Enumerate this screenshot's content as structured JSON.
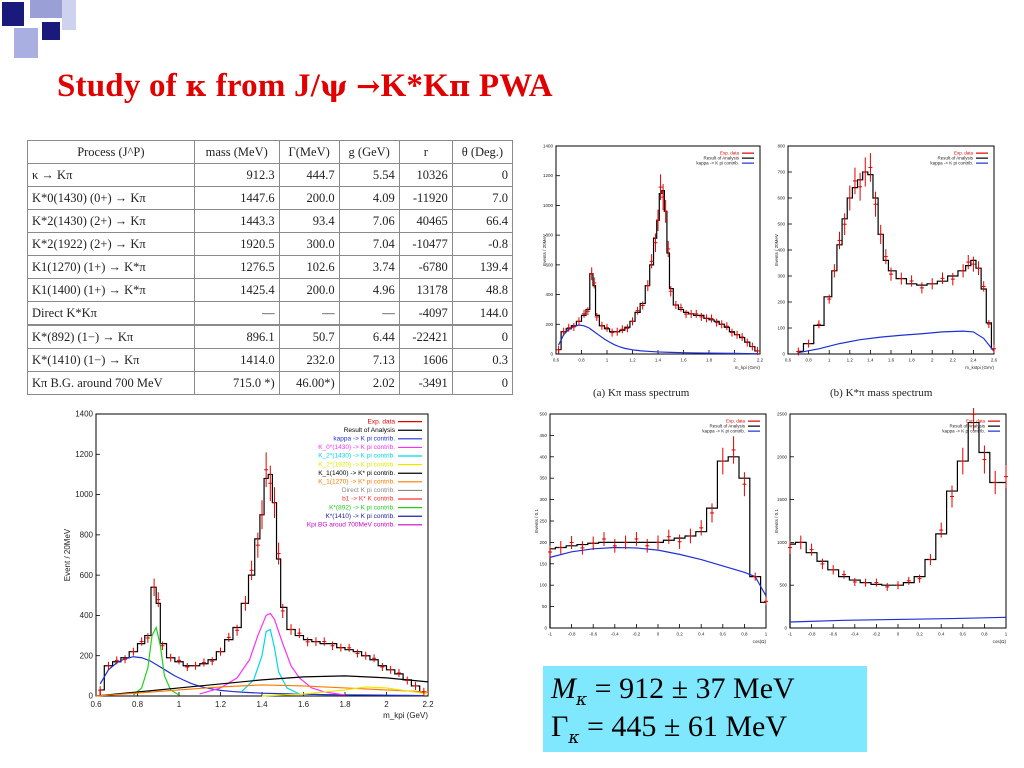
{
  "slide": {
    "title_parts": {
      "a": "Study of ",
      "kappa": "κ",
      "b": " from J/",
      "psi": "ψ",
      "c": " ",
      "arrow": "→",
      "d": "K*K",
      "pi": "π",
      "e": " PWA"
    },
    "accent_color": "#e00000"
  },
  "table": {
    "headers": [
      "Process (J^P)",
      "mass (MeV)",
      "Γ(MeV)",
      "g (GeV)",
      "r",
      "θ (Deg.)"
    ],
    "rows": [
      [
        "κ → Kπ",
        "912.3",
        "444.7",
        "5.54",
        "10326",
        "0"
      ],
      [
        "K*0(1430) (0+) → Kπ",
        "1447.6",
        "200.0",
        "4.09",
        "-11920",
        "7.0"
      ],
      [
        "K*2(1430) (2+) → Kπ",
        "1443.3",
        "93.4",
        "7.06",
        "40465",
        "66.4"
      ],
      [
        "K*2(1922) (2+) → Kπ",
        "1920.5",
        "300.0",
        "7.04",
        "-10477",
        "-0.8"
      ],
      [
        "K1(1270) (1+) → K*π",
        "1276.5",
        "102.6",
        "3.74",
        "-6780",
        "139.4"
      ],
      [
        "K1(1400) (1+) → K*π",
        "1425.4",
        "200.0",
        "4.96",
        "13178",
        "48.8"
      ],
      [
        "Direct K*Kπ",
        "—",
        "—",
        "—",
        "-4097",
        "144.0"
      ],
      [
        "K*(892) (1−) → Kπ",
        "896.1",
        "50.7",
        "6.44",
        "-22421",
        "0"
      ],
      [
        "K*(1410) (1−) → Kπ",
        "1414.0",
        "232.0",
        "7.13",
        "1606",
        "0.3"
      ],
      [
        "Kπ B.G. around 700 MeV",
        "715.0 *)",
        "46.00*)",
        "2.02",
        "-3491",
        "0"
      ]
    ]
  },
  "big_plot": {
    "xlabel": "m_kpi (GeV)",
    "ylabel": "Event / 20MeV",
    "xticks": [
      "0.6",
      "0.8",
      "1",
      "1.2",
      "1.4",
      "1.6",
      "1.8",
      "2",
      "2.2"
    ],
    "yticks": [
      "0",
      "200",
      "400",
      "600",
      "800",
      "1000",
      "1200",
      "1400"
    ],
    "legend": [
      {
        "label": "Exp. data",
        "color": "#e00000"
      },
      {
        "label": "Result of Analysis",
        "color": "#000000"
      },
      {
        "label": "kappa -> K pi contrib.",
        "color": "#1f2fd6"
      },
      {
        "label": "K_0*(1430) -> K pi contrib.",
        "color": "#ff30ff"
      },
      {
        "label": "K_2*(1430) -> K pi contrib.",
        "color": "#00d8e8"
      },
      {
        "label": "K_2*(1920) -> K pi contrib.",
        "color": "#e8e800"
      },
      {
        "label": "K_1(1400) -> K* pi contrib.",
        "color": "#000000"
      },
      {
        "label": "K_1(1270) -> K* pi contrib.",
        "color": "#ff7a00"
      },
      {
        "label": "Direct K pi contrib.",
        "color": "#888888"
      },
      {
        "label": "b1 -> K* K contrib.",
        "color": "#ff3030"
      },
      {
        "label": "K*(892) -> K pi contrib.",
        "color": "#20d020"
      },
      {
        "label": "K*(1410) -> K pi contrib.",
        "color": "#2020a0"
      },
      {
        "label": "Kpi BG aroud 700MeV contrib.",
        "color": "#cc00cc"
      }
    ]
  },
  "panel_a": {
    "caption": "(a) Kπ mass spectrum",
    "xlabel": "m_kpi (GeV)",
    "ylabel": "Events / 20MeV",
    "xticks": [
      "0.6",
      "0.8",
      "1",
      "1.2",
      "1.4",
      "1.6",
      "1.8",
      "2",
      "2.2"
    ],
    "yticks": [
      "0",
      "200",
      "400",
      "600",
      "800",
      "1000",
      "1200",
      "1400"
    ],
    "legend": [
      "Exp. data",
      "Result of Analysis",
      "kappa -> K pi contrib."
    ]
  },
  "panel_b": {
    "caption": "(b) K*π mass spectrum",
    "xlabel": "m_kstpi (GeV)",
    "ylabel": "Events / 20MeV",
    "xticks": [
      "0.6",
      "0.8",
      "1",
      "1.2",
      "1.4",
      "1.6",
      "1.8",
      "2",
      "2.2",
      "2.4",
      "2.6"
    ],
    "yticks": [
      "0",
      "100",
      "200",
      "300",
      "400",
      "500",
      "600",
      "700",
      "800"
    ],
    "legend": [
      "Exp. data",
      "Result of Analysis",
      "kappa -> K pi contrib."
    ]
  },
  "panel_c": {
    "xlabel": "cos(Ω)",
    "ylabel": "Events / 0.1",
    "xticks": [
      "-1",
      "-0.8",
      "-0.6",
      "-0.4",
      "-0.2",
      "0",
      "0.2",
      "0.4",
      "0.6",
      "0.8",
      "1"
    ],
    "yticks": [
      "0",
      "50",
      "100",
      "150",
      "200",
      "250",
      "300",
      "350",
      "400",
      "450",
      "500"
    ],
    "legend": [
      "Exp. data",
      "Result of Analysis",
      "kappa -> K pi contrib."
    ]
  },
  "panel_d": {
    "xlabel": "cos(Ω)",
    "ylabel": "Events / 0.1",
    "xticks": [
      "-1",
      "-0.8",
      "-0.6",
      "-0.4",
      "-0.2",
      "0",
      "0.2",
      "0.4",
      "0.6",
      "0.8",
      "1"
    ],
    "yticks": [
      "0",
      "500",
      "1000",
      "1500",
      "2000",
      "2500"
    ],
    "legend": [
      "Exp. data",
      "Result of Analysis",
      "kappa -> K pi contrib."
    ]
  },
  "result": {
    "mass_symbol": "M",
    "mass_sub": "κ",
    "mass_value": "= 912 ± 37  MeV",
    "width_symbol": "Γ",
    "width_sub": "κ",
    "width_value": "= 445 ± 61  MeV",
    "box_color": "#7fe8ff"
  },
  "chart_data": [
    {
      "type": "line",
      "name": "big-kpi-spectrum",
      "xlabel": "m_kpi (GeV)",
      "ylabel": "Event / 20MeV",
      "xlim": [
        0.6,
        2.2
      ],
      "ylim": [
        0,
        1400
      ],
      "series": [
        {
          "name": "Result of Analysis",
          "color": "#000000",
          "x": [
            0.62,
            0.66,
            0.7,
            0.74,
            0.78,
            0.82,
            0.85,
            0.88,
            0.9,
            0.92,
            0.96,
            1.0,
            1.04,
            1.08,
            1.12,
            1.16,
            1.2,
            1.24,
            1.28,
            1.32,
            1.35,
            1.38,
            1.4,
            1.42,
            1.44,
            1.46,
            1.48,
            1.5,
            1.54,
            1.58,
            1.62,
            1.66,
            1.7,
            1.74,
            1.78,
            1.82,
            1.86,
            1.9,
            1.94,
            1.98,
            2.02,
            2.06,
            2.1,
            2.14,
            2.18
          ],
          "y": [
            30,
            150,
            170,
            190,
            220,
            260,
            300,
            540,
            460,
            260,
            190,
            170,
            150,
            150,
            160,
            180,
            220,
            280,
            340,
            460,
            600,
            780,
            900,
            1080,
            1100,
            960,
            680,
            440,
            330,
            300,
            280,
            270,
            260,
            260,
            240,
            230,
            220,
            200,
            180,
            150,
            130,
            110,
            80,
            50,
            20
          ]
        },
        {
          "name": "kappa -> K pi contrib.",
          "color": "#1f2fd6",
          "x": [
            0.62,
            0.66,
            0.7,
            0.74,
            0.78,
            0.82,
            0.86,
            0.9,
            0.94,
            0.98,
            1.02,
            1.06,
            1.1,
            1.14,
            1.2,
            1.26,
            1.32,
            1.4,
            1.5,
            1.6,
            1.7,
            1.8,
            1.9,
            2.0,
            2.1,
            2.18
          ],
          "y": [
            60,
            130,
            165,
            185,
            195,
            190,
            175,
            150,
            125,
            100,
            80,
            62,
            48,
            38,
            28,
            22,
            18,
            14,
            11,
            9,
            7,
            6,
            5,
            4,
            3,
            2
          ]
        },
        {
          "name": "K_0*(1430) -> K pi contrib.",
          "color": "#ff30ff",
          "x": [
            1.1,
            1.2,
            1.28,
            1.34,
            1.38,
            1.42,
            1.44,
            1.46,
            1.5,
            1.54,
            1.58,
            1.64,
            1.7,
            1.8
          ],
          "y": [
            10,
            40,
            90,
            180,
            300,
            400,
            410,
            380,
            260,
            150,
            90,
            40,
            20,
            5
          ]
        },
        {
          "name": "K_2*(1430) -> K pi contrib.",
          "color": "#00d8e8",
          "x": [
            1.3,
            1.36,
            1.4,
            1.42,
            1.44,
            1.46,
            1.48,
            1.52,
            1.58
          ],
          "y": [
            20,
            80,
            200,
            320,
            330,
            240,
            120,
            40,
            10
          ]
        },
        {
          "name": "K*(892) -> K pi contrib.",
          "color": "#20d020",
          "x": [
            0.78,
            0.82,
            0.85,
            0.87,
            0.89,
            0.91,
            0.93,
            0.96,
            1.0
          ],
          "y": [
            5,
            40,
            140,
            300,
            340,
            250,
            100,
            30,
            5
          ]
        },
        {
          "name": "K_1(1400) -> K* pi contrib.",
          "color": "#000000",
          "x": [
            0.6,
            0.8,
            1.0,
            1.2,
            1.4,
            1.6,
            1.8,
            2.0,
            2.2
          ],
          "y": [
            0,
            20,
            40,
            60,
            80,
            95,
            100,
            90,
            70
          ]
        },
        {
          "name": "K_1(1270) -> K* pi contrib.",
          "color": "#ff7a00",
          "x": [
            0.6,
            0.8,
            1.0,
            1.2,
            1.4,
            1.6,
            1.8,
            2.0,
            2.2
          ],
          "y": [
            0,
            15,
            30,
            45,
            55,
            50,
            40,
            30,
            20
          ]
        },
        {
          "name": "K_2*(1920) -> K pi contrib.",
          "color": "#e8e800",
          "x": [
            1.4,
            1.6,
            1.8,
            1.9,
            2.0,
            2.1,
            2.2
          ],
          "y": [
            0,
            10,
            30,
            45,
            40,
            25,
            10
          ]
        }
      ]
    },
    {
      "type": "line",
      "name": "panel-a-kpi",
      "xlabel": "m_kpi (GeV)",
      "xlim": [
        0.6,
        2.2
      ],
      "ylim": [
        0,
        1400
      ],
      "series": [
        {
          "name": "Result of Analysis",
          "x": [
            0.62,
            0.66,
            0.7,
            0.74,
            0.78,
            0.82,
            0.85,
            0.88,
            0.9,
            0.92,
            0.96,
            1.0,
            1.04,
            1.08,
            1.12,
            1.16,
            1.2,
            1.24,
            1.28,
            1.32,
            1.35,
            1.38,
            1.4,
            1.42,
            1.44,
            1.46,
            1.48,
            1.5,
            1.54,
            1.58,
            1.62,
            1.66,
            1.7,
            1.74,
            1.78,
            1.82,
            1.86,
            1.9,
            1.94,
            1.98,
            2.02,
            2.06,
            2.1,
            2.14,
            2.18
          ],
          "y": [
            30,
            150,
            170,
            190,
            220,
            260,
            300,
            540,
            460,
            260,
            190,
            170,
            150,
            150,
            160,
            180,
            220,
            280,
            340,
            460,
            600,
            780,
            900,
            1080,
            1100,
            960,
            680,
            440,
            330,
            300,
            280,
            270,
            260,
            260,
            240,
            230,
            220,
            200,
            180,
            150,
            130,
            110,
            80,
            50,
            20
          ]
        },
        {
          "name": "kappa -> K pi contrib.",
          "x": [
            0.62,
            0.66,
            0.7,
            0.74,
            0.78,
            0.82,
            0.86,
            0.9,
            0.94,
            0.98,
            1.02,
            1.06,
            1.1,
            1.14,
            1.2,
            1.26,
            1.32,
            1.4,
            1.5,
            1.6,
            1.7,
            1.8,
            1.9,
            2.0,
            2.1,
            2.18
          ],
          "y": [
            60,
            130,
            165,
            185,
            195,
            190,
            175,
            150,
            125,
            100,
            80,
            62,
            48,
            38,
            28,
            22,
            18,
            14,
            11,
            9,
            7,
            6,
            5,
            4,
            3,
            2
          ]
        }
      ]
    },
    {
      "type": "line",
      "name": "panel-b-kstpi",
      "xlabel": "m_kstpi (GeV)",
      "xlim": [
        0.6,
        2.6
      ],
      "ylim": [
        0,
        800
      ],
      "series": [
        {
          "name": "Result of Analysis",
          "x": [
            0.7,
            0.8,
            0.9,
            1.0,
            1.05,
            1.1,
            1.15,
            1.2,
            1.25,
            1.3,
            1.35,
            1.4,
            1.45,
            1.5,
            1.55,
            1.6,
            1.7,
            1.8,
            1.9,
            2.0,
            2.1,
            2.2,
            2.3,
            2.35,
            2.4,
            2.45,
            2.5,
            2.55,
            2.6
          ],
          "y": [
            10,
            40,
            110,
            220,
            320,
            420,
            520,
            600,
            640,
            670,
            700,
            690,
            600,
            460,
            360,
            320,
            290,
            270,
            265,
            270,
            280,
            300,
            320,
            340,
            360,
            330,
            250,
            120,
            20
          ]
        },
        {
          "name": "kappa -> K pi contrib.",
          "x": [
            0.7,
            0.9,
            1.1,
            1.3,
            1.5,
            1.7,
            1.9,
            2.1,
            2.3,
            2.4,
            2.5,
            2.6
          ],
          "y": [
            5,
            20,
            40,
            55,
            65,
            72,
            78,
            85,
            88,
            85,
            60,
            10
          ]
        }
      ]
    },
    {
      "type": "line",
      "name": "panel-c-cos",
      "xlabel": "cos(Ω)",
      "xlim": [
        -1,
        1
      ],
      "ylim": [
        0,
        500
      ],
      "series": [
        {
          "name": "Result of Analysis",
          "x": [
            -1,
            -0.9,
            -0.8,
            -0.7,
            -0.6,
            -0.5,
            -0.4,
            -0.3,
            -0.2,
            -0.1,
            0,
            0.1,
            0.2,
            0.3,
            0.4,
            0.5,
            0.6,
            0.7,
            0.8,
            0.9,
            1
          ],
          "y": [
            185,
            188,
            192,
            195,
            198,
            200,
            200,
            200,
            200,
            200,
            200,
            205,
            210,
            215,
            225,
            280,
            390,
            400,
            350,
            120,
            60
          ]
        },
        {
          "name": "kappa -> K pi contrib.",
          "x": [
            -1,
            -0.8,
            -0.6,
            -0.4,
            -0.2,
            0,
            0.2,
            0.4,
            0.6,
            0.8,
            0.9,
            1
          ],
          "y": [
            165,
            178,
            185,
            188,
            187,
            182,
            172,
            160,
            145,
            130,
            120,
            75
          ]
        }
      ]
    },
    {
      "type": "line",
      "name": "panel-d-cos",
      "xlabel": "cos(Ω)",
      "xlim": [
        -1,
        1
      ],
      "ylim": [
        0,
        2500
      ],
      "series": [
        {
          "name": "Result of Analysis",
          "x": [
            -1,
            -0.9,
            -0.8,
            -0.7,
            -0.6,
            -0.5,
            -0.4,
            -0.3,
            -0.2,
            -0.1,
            0,
            0.1,
            0.2,
            0.3,
            0.4,
            0.5,
            0.6,
            0.7,
            0.8,
            0.9,
            1
          ],
          "y": [
            980,
            1000,
            880,
            780,
            680,
            600,
            560,
            530,
            510,
            500,
            500,
            530,
            600,
            800,
            1100,
            1600,
            1950,
            2400,
            2050,
            1700,
            1700
          ]
        },
        {
          "name": "kappa -> K pi contrib.",
          "x": [
            -1,
            -0.5,
            0,
            0.5,
            1
          ],
          "y": [
            70,
            90,
            100,
            110,
            125
          ]
        }
      ]
    }
  ]
}
